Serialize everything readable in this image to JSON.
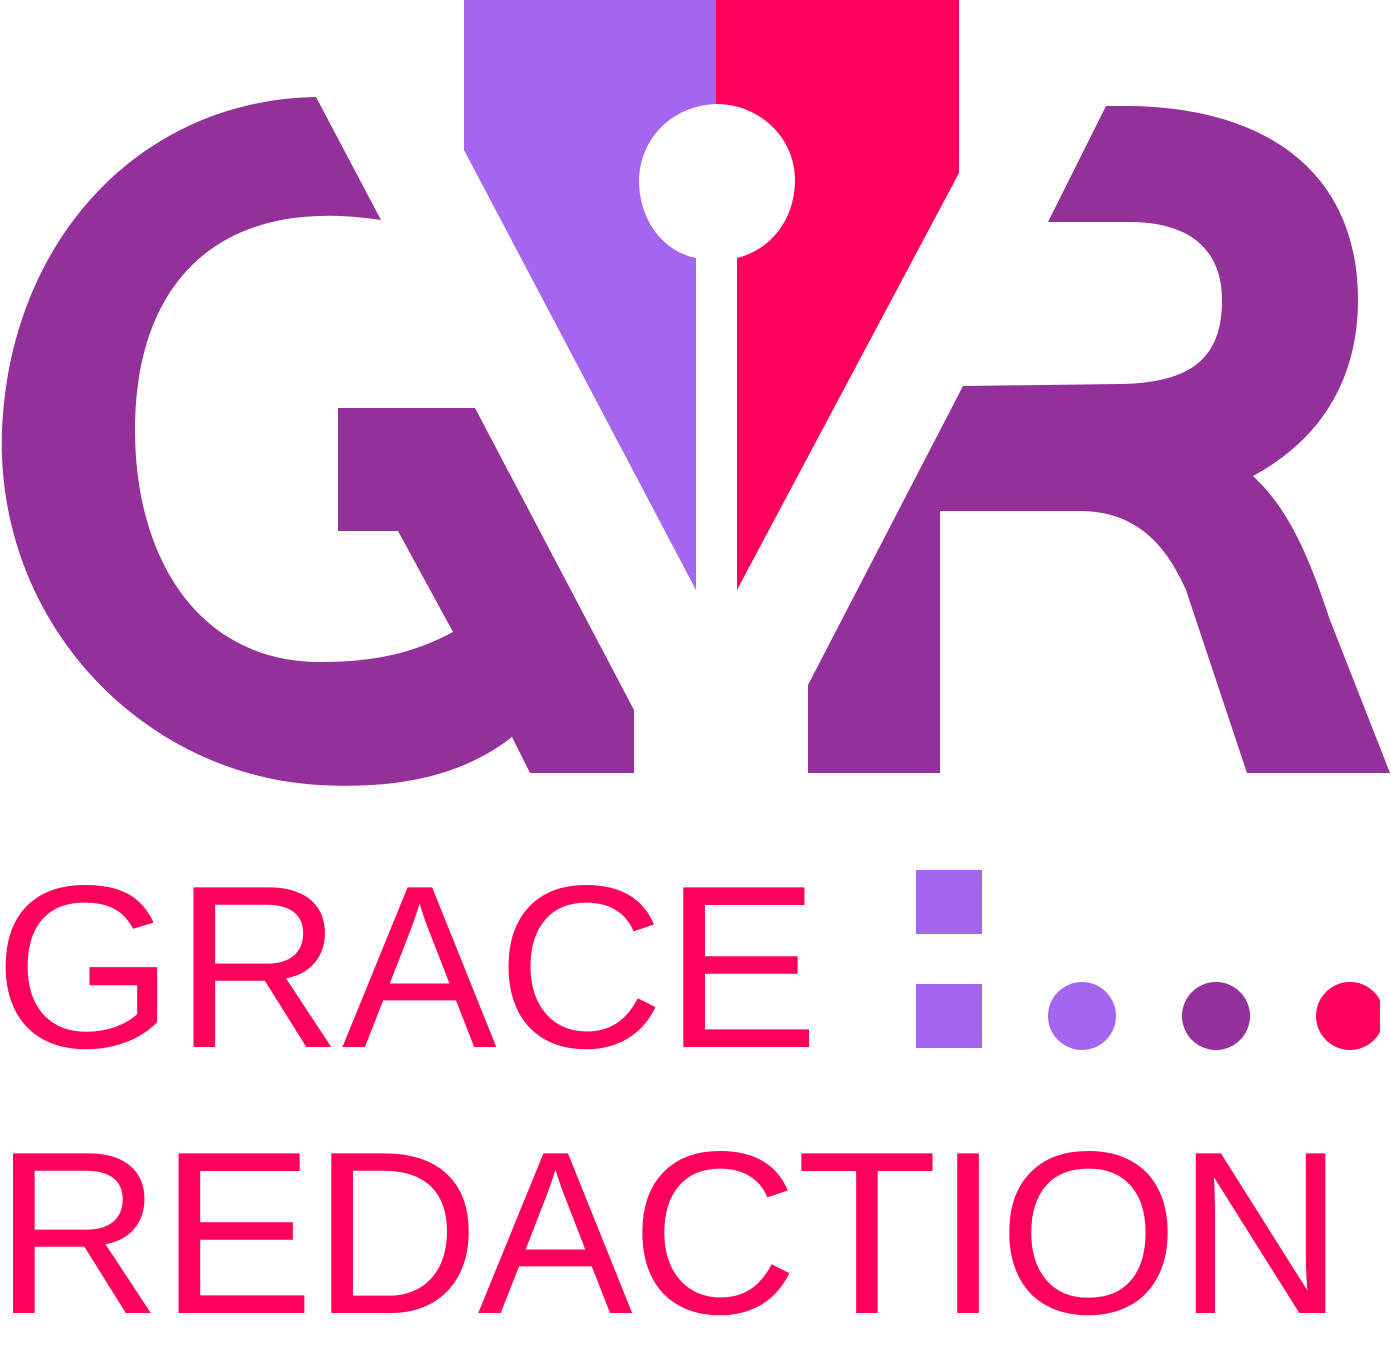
{
  "logo": {
    "monogram": "GR",
    "words": {
      "line1": "GRACE",
      "line2": "REDACTION"
    },
    "colors": {
      "purple_dark": "#93309a",
      "purple_light": "#a466f0",
      "pink": "#ff005a",
      "background": "#ffffff"
    },
    "icons": {
      "pen_nib": "pen-nib-icon",
      "colon_dots": "colon-icon",
      "ellipsis": "ellipsis-icon"
    }
  }
}
